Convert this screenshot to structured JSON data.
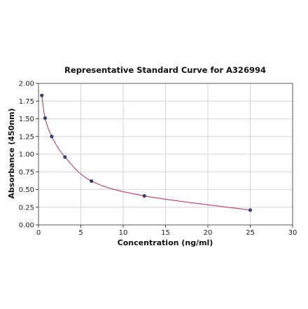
{
  "chart_data": {
    "type": "scatter",
    "title": "Representative Standard Curve for A326994",
    "xlabel": "Concentration (ng/ml)",
    "ylabel": "Absorbance (450nm)",
    "xlim": [
      0,
      30
    ],
    "ylim": [
      0,
      2
    ],
    "xticks": [
      "0",
      "5",
      "10",
      "15",
      "20",
      "25",
      "30"
    ],
    "yticks": [
      "0.00",
      "0.25",
      "0.50",
      "0.75",
      "1.00",
      "1.25",
      "1.50",
      "1.75",
      "2.00"
    ],
    "grid": true,
    "series": [
      {
        "x": [
          0.39,
          0.78,
          1.56,
          3.125,
          6.25,
          12.5,
          25
        ],
        "y": [
          1.83,
          1.51,
          1.25,
          0.96,
          0.62,
          0.41,
          0.21
        ]
      }
    ],
    "fit_curve": {
      "x": [
        0.39,
        0.78,
        1.56,
        3.125,
        6.25,
        12.5,
        25
      ],
      "y": [
        1.83,
        1.51,
        1.25,
        0.96,
        0.62,
        0.41,
        0.21
      ]
    },
    "colors": {
      "points": "#3c3f6e",
      "curve": "#b8507a",
      "grid": "#d4d4d4"
    }
  }
}
